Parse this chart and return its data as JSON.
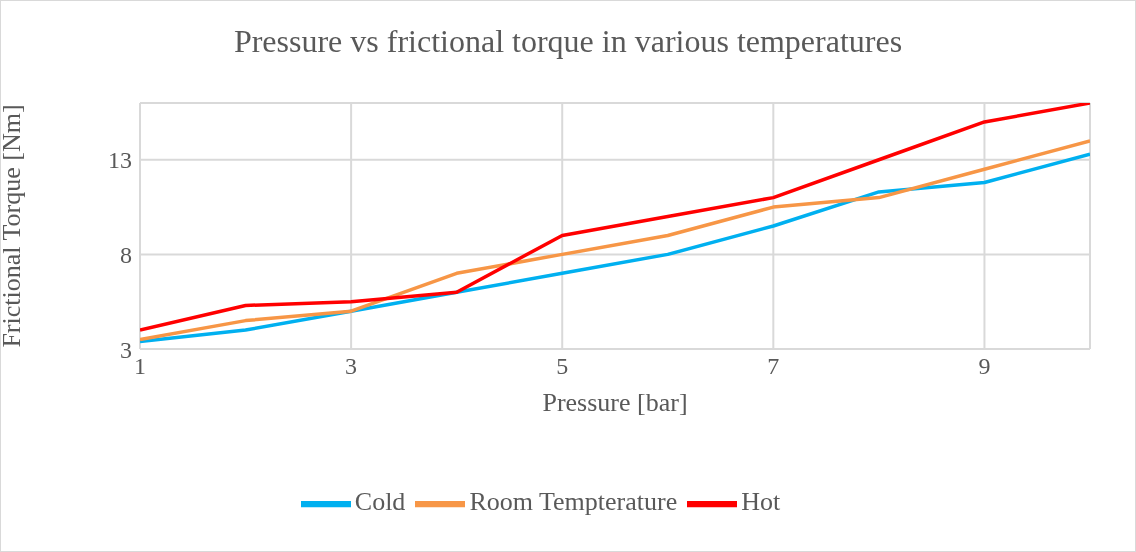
{
  "chart_data": {
    "type": "line",
    "title": "Pressure vs frictional torque in various temperatures",
    "xlabel": "Pressure [bar]",
    "ylabel": "Frictional Torque [Nm]",
    "x": [
      1,
      2,
      3,
      4,
      5,
      6,
      7,
      8,
      9,
      10
    ],
    "series": [
      {
        "name": "Cold",
        "color": "#00b0f0",
        "values": [
          3.4,
          4.0,
          5.0,
          6.0,
          7.0,
          8.0,
          9.5,
          11.3,
          11.8,
          13.3
        ]
      },
      {
        "name": "Room Tempterature",
        "color": "#f79646",
        "values": [
          3.5,
          4.5,
          5.0,
          7.0,
          8.0,
          9.0,
          10.5,
          11.0,
          12.5,
          14.0
        ]
      },
      {
        "name": "Hot",
        "color": "#ff0000",
        "values": [
          4.0,
          5.3,
          5.5,
          6.0,
          9.0,
          10.0,
          11.0,
          13.0,
          15.0,
          16.0
        ]
      }
    ],
    "xlim": [
      1,
      10
    ],
    "xticks": [
      1,
      3,
      5,
      7,
      9
    ],
    "ylim": [
      3,
      16
    ],
    "yticks": [
      3,
      8,
      13
    ],
    "grid": true,
    "legend": "bottom",
    "marker": "none",
    "line_style": "solid"
  }
}
